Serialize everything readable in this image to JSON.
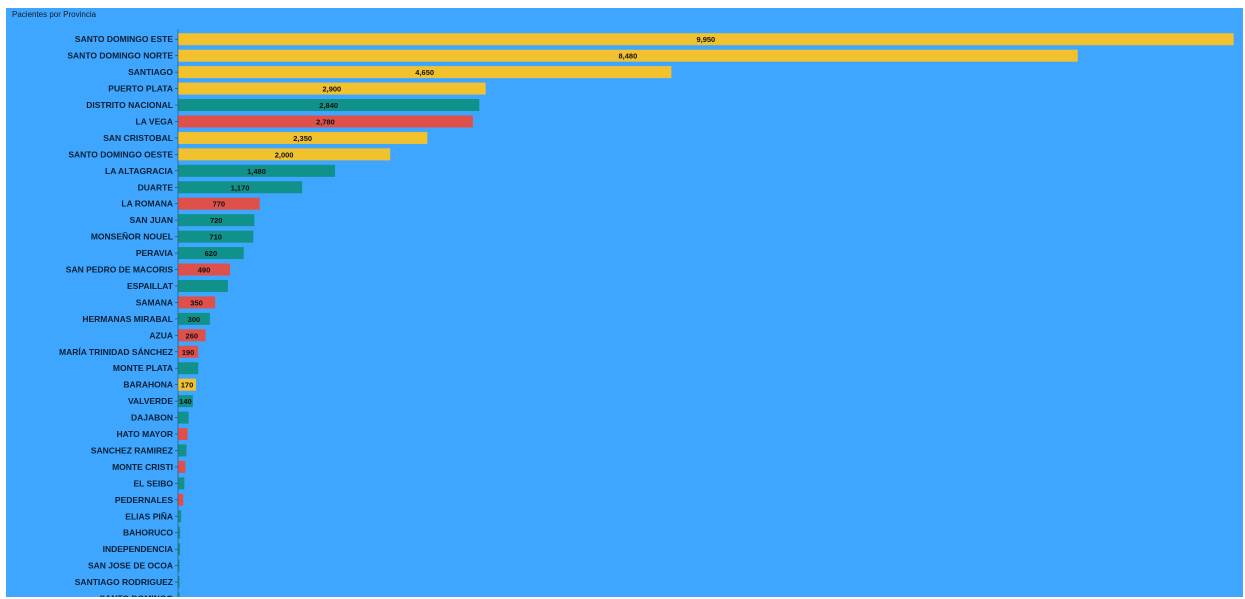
{
  "chart_data": {
    "type": "bar",
    "orientation": "horizontal",
    "title": "Pacientes por Provincia",
    "xlabel": "",
    "ylabel": "",
    "xlim": [
      0,
      10000
    ],
    "grid": false,
    "legend": "none",
    "colors": {
      "yellow": "#f2c12e",
      "teal": "#10918a",
      "red": "#e0504a"
    },
    "categories": [
      "SANTO DOMINGO ESTE",
      "SANTO DOMINGO NORTE",
      "SANTIAGO",
      "PUERTO PLATA",
      "DISTRITO NACIONAL",
      "LA VEGA",
      "SAN CRISTOBAL",
      "SANTO DOMINGO OESTE",
      "LA ALTAGRACIA",
      "DUARTE",
      "LA ROMANA",
      "SAN JUAN",
      "MONSEÑOR NOUEL",
      "PERAVIA",
      "SAN PEDRO DE MACORIS",
      "ESPAILLAT",
      "SAMANA",
      "HERMANAS MIRABAL",
      "AZUA",
      "MARÍA TRINIDAD SÁNCHEZ",
      "MONTE PLATA",
      "BARAHONA",
      "VALVERDE",
      "DAJABON",
      "HATO MAYOR",
      "SANCHEZ RAMIREZ",
      "MONTE CRISTI",
      "EL SEIBO",
      "PEDERNALES",
      "ELIAS PIÑA",
      "BAHORUCO",
      "INDEPENDENCIA",
      "SAN JOSE DE OCOA",
      "SANTIAGO RODRIGUEZ",
      "SANTO DOMINGO"
    ],
    "values": [
      9950,
      8480,
      4650,
      2900,
      2840,
      2780,
      2350,
      2000,
      1480,
      1170,
      770,
      720,
      710,
      620,
      490,
      470,
      350,
      300,
      260,
      190,
      190,
      170,
      140,
      100,
      90,
      80,
      70,
      60,
      50,
      30,
      20,
      20,
      10,
      10,
      5
    ],
    "bar_colors": [
      "yellow",
      "yellow",
      "yellow",
      "yellow",
      "teal",
      "red",
      "yellow",
      "yellow",
      "teal",
      "teal",
      "red",
      "teal",
      "teal",
      "teal",
      "red",
      "teal",
      "red",
      "teal",
      "red",
      "red",
      "teal",
      "yellow",
      "teal",
      "teal",
      "red",
      "teal",
      "red",
      "teal",
      "red",
      "teal",
      "teal",
      "teal",
      "teal",
      "teal",
      "teal"
    ],
    "data_labels": [
      "9,950",
      "8,480",
      "4,650",
      "2,900",
      "2,840",
      "2,780",
      "2,350",
      "2,000",
      "1,480",
      "1,170",
      "770",
      "720",
      "710",
      "620",
      "490",
      "",
      "350",
      "300",
      "260",
      "190",
      "",
      "170",
      "140",
      "",
      "",
      "",
      "",
      "",
      "",
      "",
      "",
      "",
      "",
      "",
      ""
    ]
  }
}
